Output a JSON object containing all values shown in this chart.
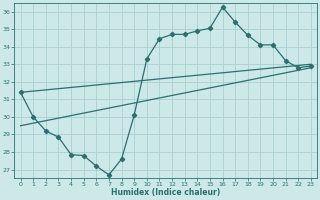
{
  "xlabel": "Humidex (Indice chaleur)",
  "xlim": [
    -0.5,
    23.5
  ],
  "ylim": [
    26.5,
    36.5
  ],
  "xticks": [
    0,
    1,
    2,
    3,
    4,
    5,
    6,
    7,
    8,
    9,
    10,
    11,
    12,
    13,
    14,
    15,
    16,
    17,
    18,
    19,
    20,
    21,
    22,
    23
  ],
  "yticks": [
    27,
    28,
    29,
    30,
    31,
    32,
    33,
    34,
    35,
    36
  ],
  "background_color": "#cce8e8",
  "grid_color": "#aad0d0",
  "line_color": "#2a7070",
  "line1_x": [
    0,
    1,
    2,
    3,
    4,
    5,
    6,
    7,
    8,
    9,
    10,
    11,
    12,
    13,
    14,
    15,
    16,
    17,
    18,
    19,
    20,
    21,
    22,
    23
  ],
  "line1_y": [
    31.4,
    30.0,
    29.2,
    28.85,
    27.85,
    27.8,
    27.2,
    26.7,
    27.6,
    30.1,
    33.3,
    34.45,
    34.7,
    34.7,
    34.9,
    35.05,
    36.25,
    35.4,
    34.65,
    34.1,
    34.1,
    33.2,
    32.8,
    32.9
  ],
  "line2_x": [
    0,
    23
  ],
  "line2_y": [
    31.4,
    33.0
  ],
  "line3_x": [
    0,
    23
  ],
  "line3_y": [
    29.5,
    32.8
  ],
  "marker": "D",
  "marker_size": 2.2,
  "linewidth": 0.9
}
